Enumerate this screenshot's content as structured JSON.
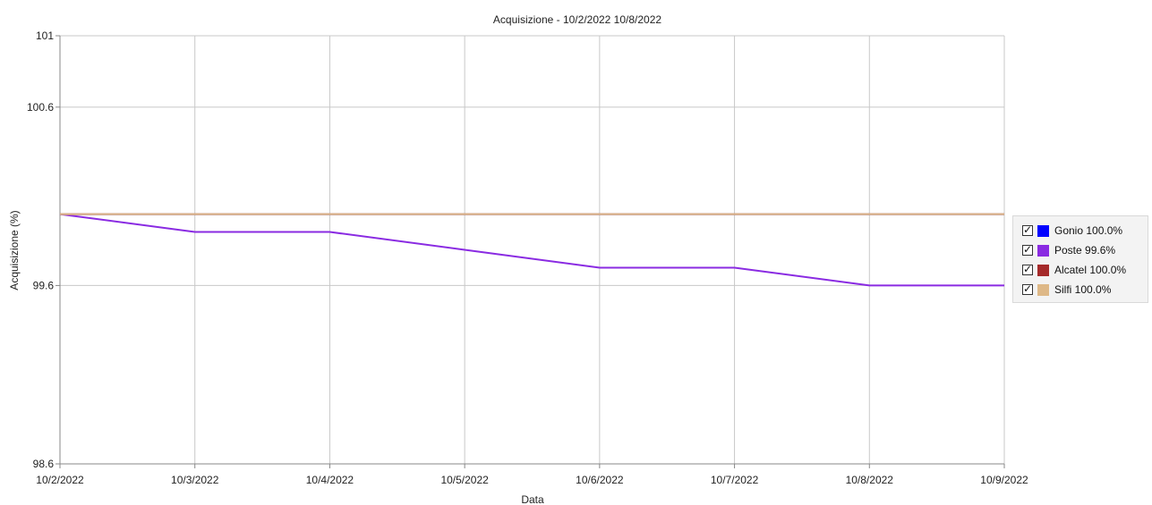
{
  "chart_data": {
    "type": "line",
    "title": "Acquisizione - 10/2/2022 10/8/2022",
    "xlabel": "Data",
    "ylabel": "Acquisizione (%)",
    "x": [
      "10/2/2022",
      "10/3/2022",
      "10/4/2022",
      "10/5/2022",
      "10/6/2022",
      "10/7/2022",
      "10/8/2022",
      "10/9/2022"
    ],
    "y_ticks": [
      "101",
      "100.6",
      "99.6",
      "98.6"
    ],
    "y_tick_values": [
      101,
      100.6,
      99.6,
      98.6
    ],
    "ylim": [
      98.6,
      101
    ],
    "grid": true,
    "legend_position": "right",
    "series": [
      {
        "name": "Gonio 100.0%",
        "color": "#0000ff",
        "values": [
          100,
          100,
          100,
          100,
          100,
          100,
          100,
          100
        ]
      },
      {
        "name": "Poste 99.6%",
        "color": "#8a2be2",
        "values": [
          100,
          99.9,
          99.9,
          99.8,
          99.7,
          99.7,
          99.6,
          99.6
        ]
      },
      {
        "name": "Alcatel 100.0%",
        "color": "#a52a2a",
        "values": [
          100,
          100,
          100,
          100,
          100,
          100,
          100,
          100
        ]
      },
      {
        "name": "Silfi 100.0%",
        "color": "#deb887",
        "values": [
          100,
          100,
          100,
          100,
          100,
          100,
          100,
          100
        ]
      }
    ]
  }
}
